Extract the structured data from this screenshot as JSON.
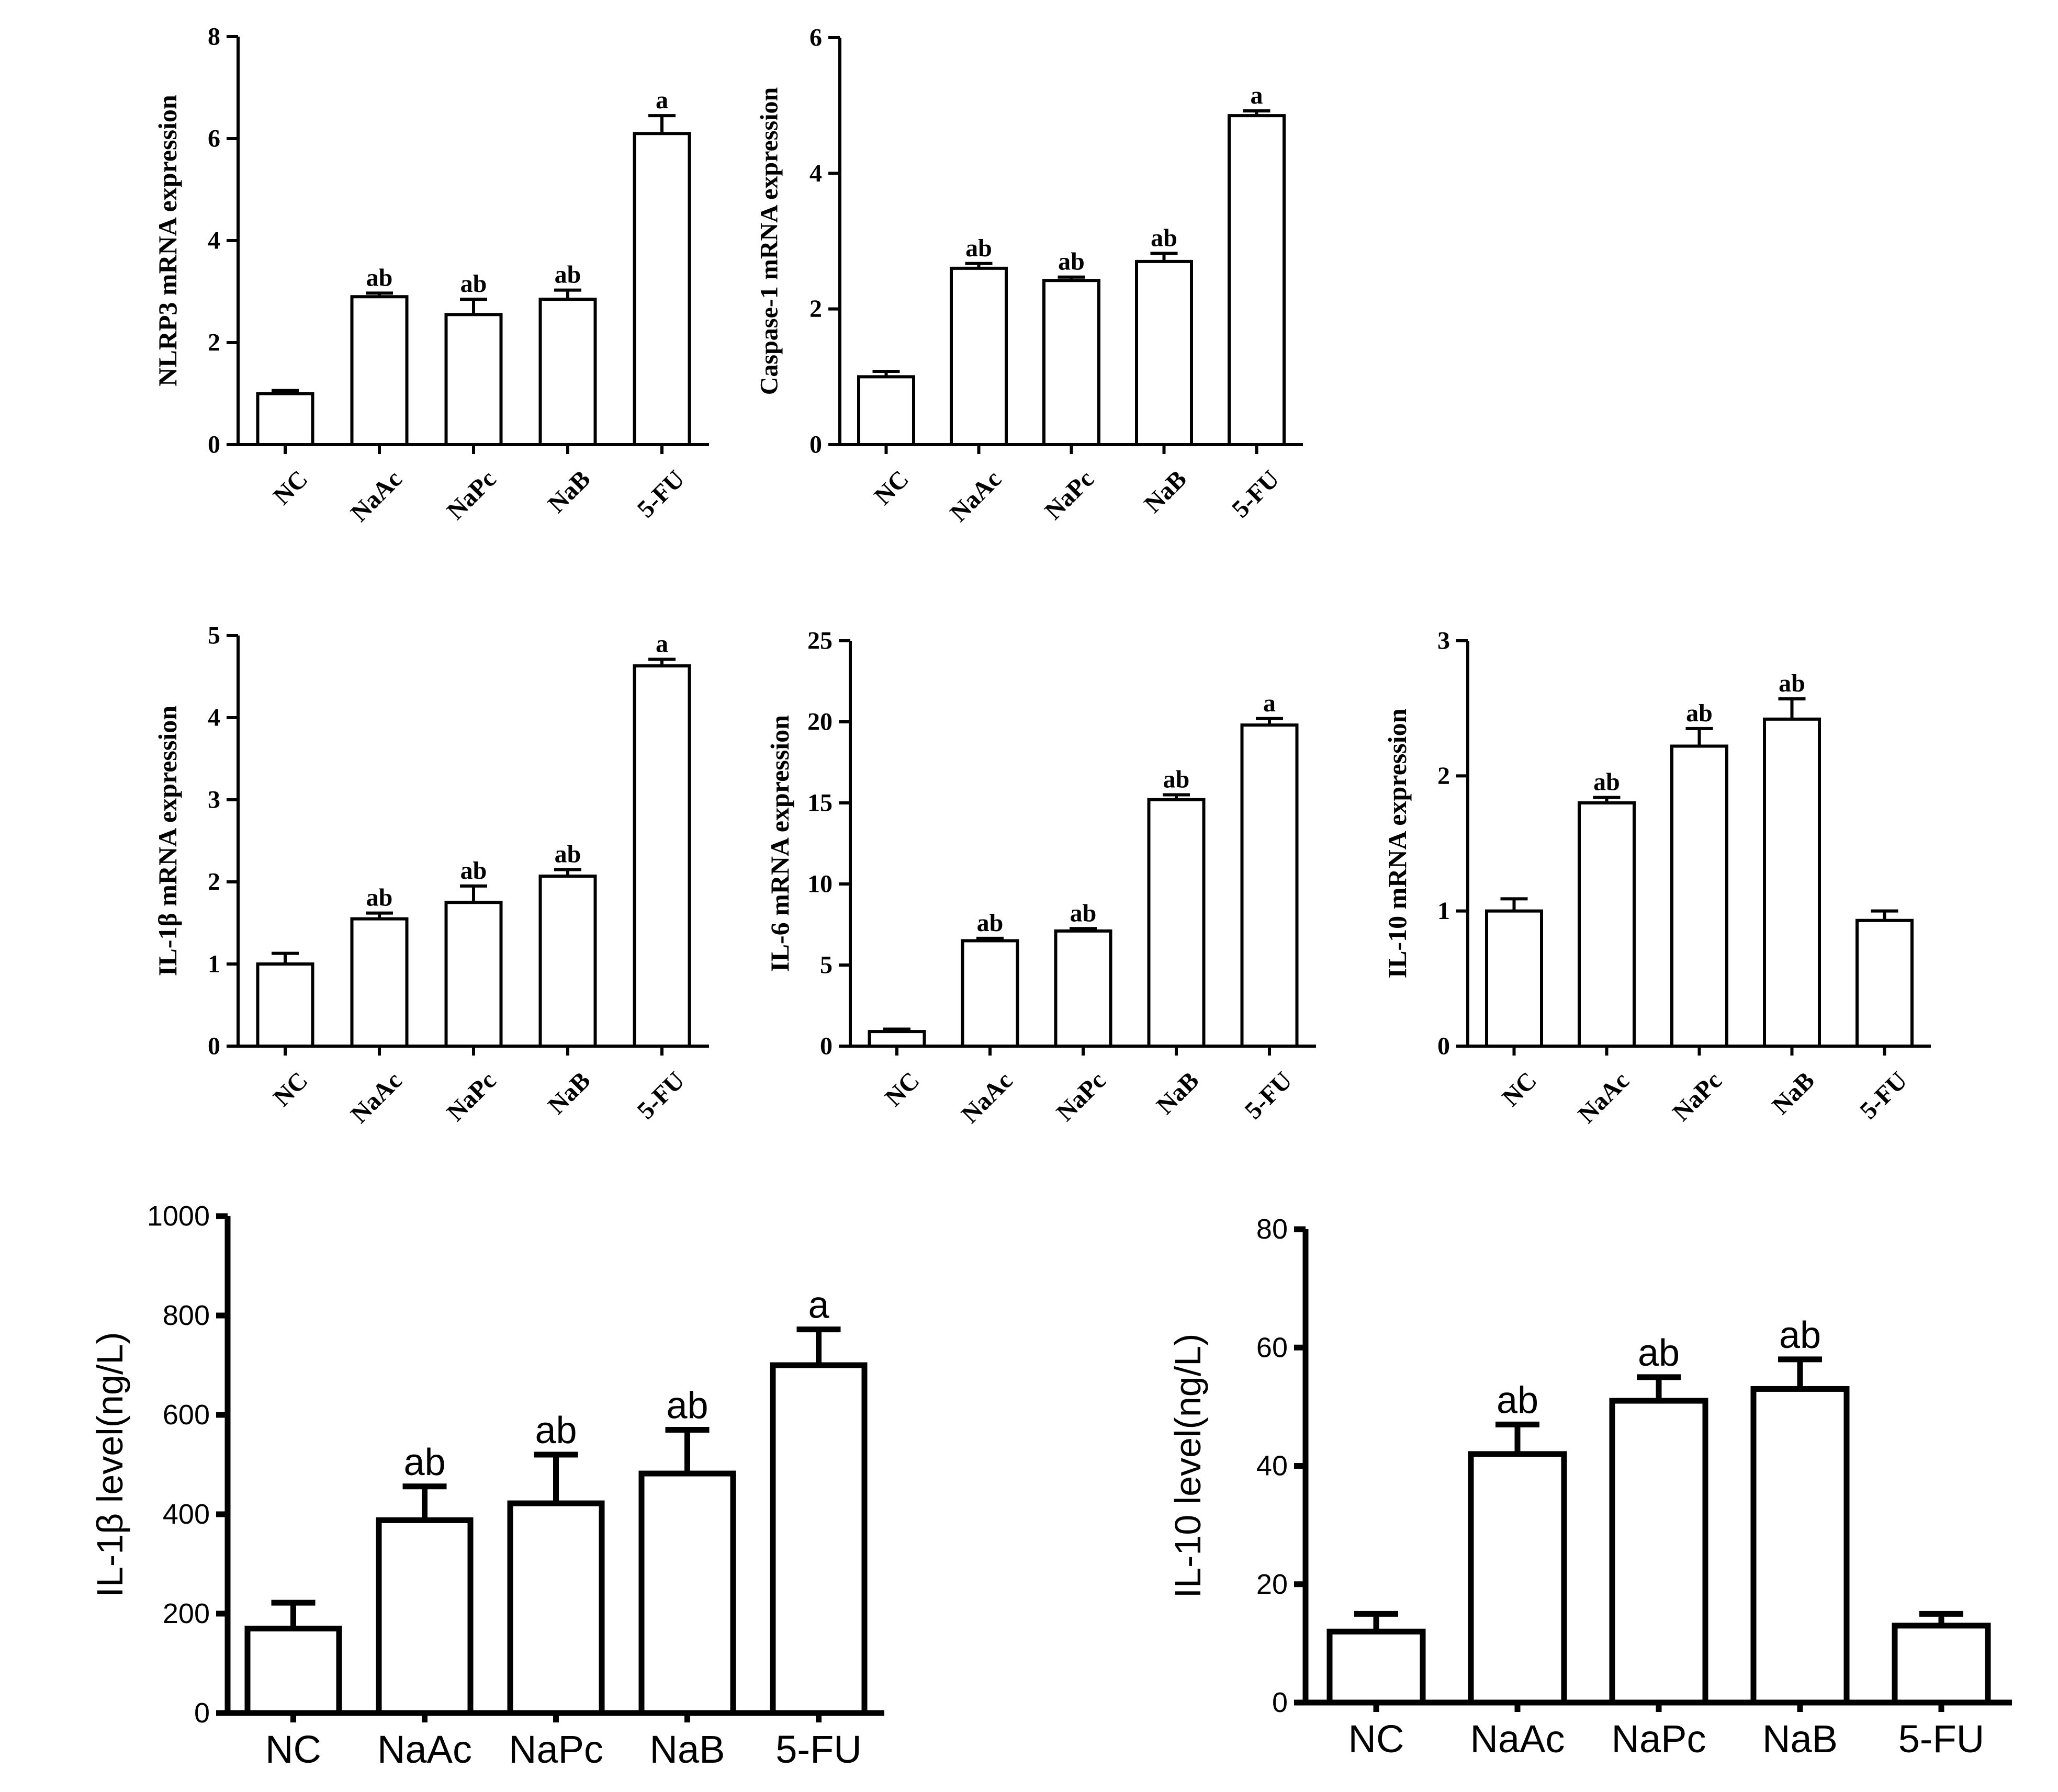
{
  "figure": {
    "background": "#ffffff",
    "ink": "#000000"
  },
  "chart_data": [
    {
      "id": "nlrp3",
      "type": "bar",
      "style": "serif",
      "title": "",
      "xlabel": "",
      "ylabel": "NLRP3 mRNA expression",
      "ylim": [
        0,
        8
      ],
      "yticks": [
        0,
        2,
        4,
        6,
        8
      ],
      "categories": [
        "NC",
        "NaAc",
        "NaPc",
        "NaB",
        "5-FU"
      ],
      "values": [
        1.0,
        2.9,
        2.55,
        2.85,
        6.1
      ],
      "errors": [
        0.06,
        0.07,
        0.3,
        0.18,
        0.35
      ],
      "annotations": [
        "",
        "ab",
        "ab",
        "ab",
        "a"
      ]
    },
    {
      "id": "caspase1",
      "type": "bar",
      "style": "serif",
      "title": "",
      "xlabel": "",
      "ylabel": "Caspase-1 mRNA expression",
      "ylim": [
        0,
        6
      ],
      "yticks": [
        0,
        2,
        4,
        6
      ],
      "categories": [
        "NC",
        "NaAc",
        "NaPc",
        "NaB",
        "5-FU"
      ],
      "values": [
        1.0,
        2.6,
        2.42,
        2.7,
        4.85
      ],
      "errors": [
        0.08,
        0.07,
        0.05,
        0.12,
        0.07
      ],
      "annotations": [
        "",
        "ab",
        "ab",
        "ab",
        "a"
      ]
    },
    {
      "id": "il1b_mrna",
      "type": "bar",
      "style": "serif",
      "title": "",
      "xlabel": "",
      "ylabel": "IL-1β mRNA expression",
      "ylim": [
        0,
        5
      ],
      "yticks": [
        0,
        1,
        2,
        3,
        4,
        5
      ],
      "categories": [
        "NC",
        "NaAc",
        "NaPc",
        "NaB",
        "5-FU"
      ],
      "values": [
        1.0,
        1.55,
        1.75,
        2.07,
        4.63
      ],
      "errors": [
        0.13,
        0.07,
        0.2,
        0.08,
        0.08
      ],
      "annotations": [
        "",
        "ab",
        "ab",
        "ab",
        "a"
      ]
    },
    {
      "id": "il6_mrna",
      "type": "bar",
      "style": "serif",
      "title": "",
      "xlabel": "",
      "ylabel": "IL-6 mRNA expression",
      "ylim": [
        0,
        25
      ],
      "yticks": [
        0,
        5,
        10,
        15,
        20,
        25
      ],
      "categories": [
        "NC",
        "NaAc",
        "NaPc",
        "NaB",
        "5-FU"
      ],
      "values": [
        0.9,
        6.5,
        7.1,
        15.2,
        19.8
      ],
      "errors": [
        0.15,
        0.15,
        0.15,
        0.3,
        0.4
      ],
      "annotations": [
        "",
        "ab",
        "ab",
        "ab",
        "a"
      ]
    },
    {
      "id": "il10_mrna",
      "type": "bar",
      "style": "serif",
      "title": "",
      "xlabel": "",
      "ylabel": "IL-10 mRNA expression",
      "ylim": [
        0,
        3
      ],
      "yticks": [
        0,
        1,
        2,
        3
      ],
      "categories": [
        "NC",
        "NaAc",
        "NaPc",
        "NaB",
        "5-FU"
      ],
      "values": [
        1.0,
        1.8,
        2.22,
        2.42,
        0.93
      ],
      "errors": [
        0.09,
        0.04,
        0.13,
        0.15,
        0.07
      ],
      "annotations": [
        "",
        "ab",
        "ab",
        "ab",
        ""
      ]
    },
    {
      "id": "il1b_level",
      "type": "bar",
      "style": "sans",
      "title": "",
      "xlabel": "",
      "ylabel": "IL-1β level(ng/L)",
      "ylim": [
        0,
        1000
      ],
      "yticks": [
        0,
        200,
        400,
        600,
        800,
        1000
      ],
      "categories": [
        "NC",
        "NaAc",
        "NaPc",
        "NaB",
        "5-FU"
      ],
      "values": [
        170,
        388,
        422,
        482,
        700
      ],
      "errors": [
        52,
        68,
        98,
        88,
        72
      ],
      "annotations": [
        "",
        "ab",
        "ab",
        "ab",
        "a"
      ]
    },
    {
      "id": "il10_level",
      "type": "bar",
      "style": "sans",
      "title": "",
      "xlabel": "",
      "ylabel": "IL-10 level(ng/L)",
      "ylim": [
        0,
        80
      ],
      "yticks": [
        0,
        20,
        40,
        60,
        80
      ],
      "categories": [
        "NC",
        "NaAc",
        "NaPc",
        "NaB",
        "5-FU"
      ],
      "values": [
        12,
        42,
        51,
        53,
        13
      ],
      "errors": [
        3,
        5,
        4,
        5,
        2
      ],
      "annotations": [
        "",
        "ab",
        "ab",
        "ab",
        ""
      ]
    }
  ]
}
